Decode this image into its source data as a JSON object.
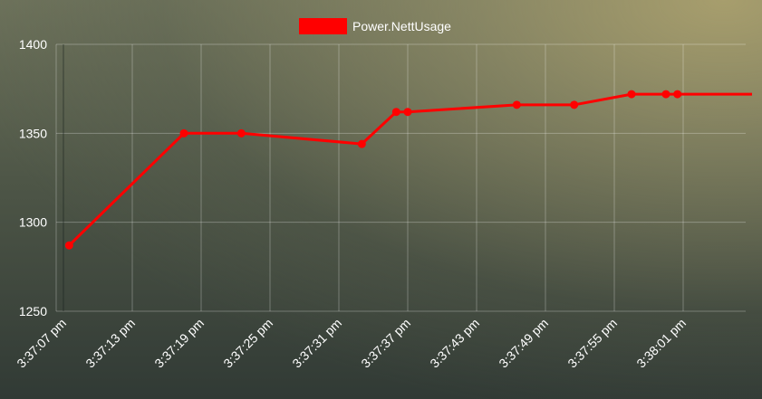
{
  "chart_data": {
    "type": "line",
    "series": [
      {
        "name": "Power.NettUsage",
        "color": "#ff0000",
        "points": [
          {
            "x": "3:37:07.5",
            "y": 1287
          },
          {
            "x": "3:37:17.5",
            "y": 1350
          },
          {
            "x": "3:37:22.5",
            "y": 1350
          },
          {
            "x": "3:37:33.0",
            "y": 1344
          },
          {
            "x": "3:37:36.0",
            "y": 1362
          },
          {
            "x": "3:37:37.0",
            "y": 1362
          },
          {
            "x": "3:37:46.5",
            "y": 1366
          },
          {
            "x": "3:37:51.5",
            "y": 1366
          },
          {
            "x": "3:37:56.5",
            "y": 1372
          },
          {
            "x": "3:37:59.5",
            "y": 1372
          },
          {
            "x": "3:38:00.5",
            "y": 1372
          },
          {
            "x": "3:38:07.0",
            "y": 1372
          }
        ]
      }
    ],
    "x_ticks": [
      "3:37:07 pm",
      "3:37:13 pm",
      "3:37:19 pm",
      "3:37:25 pm",
      "3:37:31 pm",
      "3:37:37 pm",
      "3:37:43 pm",
      "3:37:49 pm",
      "3:37:55 pm",
      "3:38:01 pm"
    ],
    "y_ticks": [
      1250,
      1300,
      1350,
      1400
    ],
    "ylim": [
      1250,
      1400
    ],
    "grid": true,
    "legend_position": "top-center"
  }
}
